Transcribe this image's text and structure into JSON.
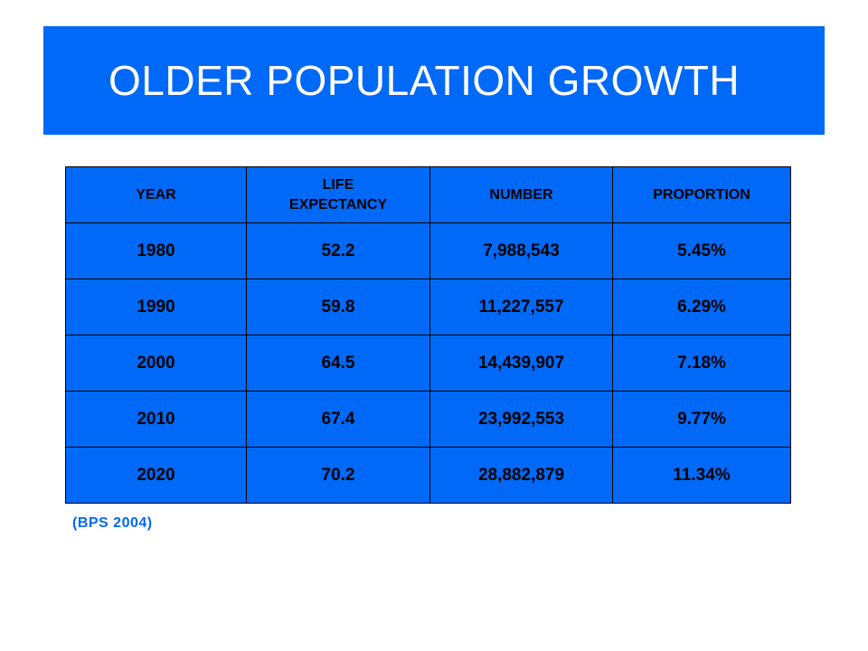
{
  "title": "OLDER POPULATION GROWTH",
  "columns": [
    "YEAR",
    "LIFE EXPECTANCY",
    "NUMBER",
    "PROPORTION"
  ],
  "rows": [
    [
      "1980",
      "52.2",
      "7,988,543",
      "5.45%"
    ],
    [
      "1990",
      "59.8",
      "11,227,557",
      "6.29%"
    ],
    [
      "2000",
      "64.5",
      "14,439,907",
      "7.18%"
    ],
    [
      "2010",
      "67.4",
      "23,992,553",
      "9.77%"
    ],
    [
      "2020",
      "70.2",
      "28,882,879",
      "11.34%"
    ]
  ],
  "source": "(BPS 2004)",
  "colors": {
    "accent": "#0069f7",
    "text_on_accent": "#000000",
    "title_text": "#ffffff"
  }
}
